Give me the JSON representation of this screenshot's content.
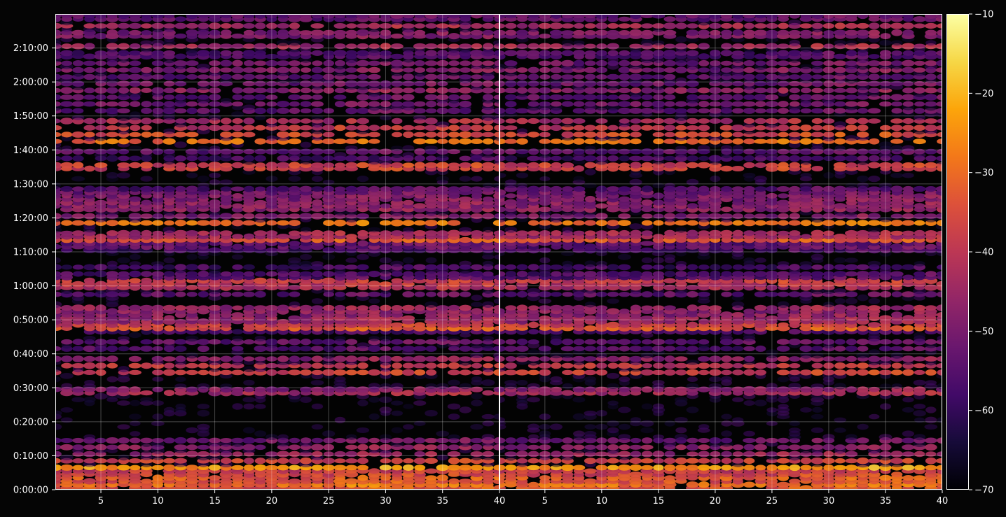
{
  "chart_data": {
    "type": "heatmap",
    "title": "",
    "xlabel": "",
    "ylabel": "",
    "background_color": "#050505",
    "axis_color": "#ffffff",
    "grid": true,
    "colormap": "inferno",
    "panels": [
      {
        "name": "",
        "xlim": [
          1,
          40
        ]
      },
      {
        "name": "",
        "xlim": [
          1,
          40
        ]
      }
    ],
    "x_ticks": [
      5,
      10,
      15,
      20,
      25,
      30,
      35,
      40
    ],
    "y_ticks": [
      "0:00:00",
      "0:10:00",
      "0:20:00",
      "0:30:00",
      "0:40:00",
      "0:50:00",
      "1:00:00",
      "1:10:00",
      "1:20:00",
      "1:30:00",
      "1:40:00",
      "1:50:00",
      "2:00:00",
      "2:10:00"
    ],
    "ylim_minutes": [
      0,
      140
    ],
    "colorbar": {
      "range": [
        -70,
        -10
      ],
      "ticks": [
        -10,
        -20,
        -30,
        -40,
        -50,
        -60,
        -70
      ]
    },
    "active_bands": [
      {
        "t": 0.8,
        "level": -28
      },
      {
        "t": 2.6,
        "level": -30
      },
      {
        "t": 4.4,
        "level": -34
      },
      {
        "t": 6.0,
        "level": -24
      },
      {
        "t": 8.0,
        "level": -38
      },
      {
        "t": 10.0,
        "level": -46
      },
      {
        "t": 12.0,
        "level": -48
      },
      {
        "t": 14.0,
        "level": -52
      },
      {
        "t": 28.2,
        "level": -42
      },
      {
        "t": 34.0,
        "level": -38
      },
      {
        "t": 36.0,
        "level": -40
      },
      {
        "t": 38.0,
        "level": -48
      },
      {
        "t": 41.0,
        "level": -56
      },
      {
        "t": 43.0,
        "level": -54
      },
      {
        "t": 46.0,
        "level": -58
      },
      {
        "t": 47.2,
        "level": -32
      },
      {
        "t": 49.5,
        "level": -42
      },
      {
        "t": 51.5,
        "level": -44
      },
      {
        "t": 53.0,
        "level": -46
      },
      {
        "t": 57.0,
        "level": -54
      },
      {
        "t": 59.0,
        "level": -44
      },
      {
        "t": 60.6,
        "level": -36
      },
      {
        "t": 62.5,
        "level": -52
      },
      {
        "t": 65.0,
        "level": -58
      },
      {
        "t": 70.0,
        "level": -58
      },
      {
        "t": 71.5,
        "level": -50
      },
      {
        "t": 73.0,
        "level": -34
      },
      {
        "t": 74.5,
        "level": -40
      },
      {
        "t": 78.0,
        "level": -30
      },
      {
        "t": 80.0,
        "level": -50
      },
      {
        "t": 82.0,
        "level": -48
      },
      {
        "t": 83.5,
        "level": -44
      },
      {
        "t": 85.5,
        "level": -46
      },
      {
        "t": 87.0,
        "level": -52
      },
      {
        "t": 88.0,
        "level": -56
      },
      {
        "t": 94.5,
        "level": -34
      },
      {
        "t": 97.0,
        "level": -58
      },
      {
        "t": 99.0,
        "level": -54
      },
      {
        "t": 102.0,
        "level": -30
      },
      {
        "t": 104.0,
        "level": -36
      },
      {
        "t": 106.0,
        "level": -40
      },
      {
        "t": 108.0,
        "level": -44
      },
      {
        "t": 111.0,
        "level": -54
      },
      {
        "t": 113.0,
        "level": -52
      },
      {
        "t": 115.0,
        "level": -54
      },
      {
        "t": 117.0,
        "level": -48
      },
      {
        "t": 119.0,
        "level": -52
      },
      {
        "t": 121.0,
        "level": -54
      },
      {
        "t": 123.0,
        "level": -50
      },
      {
        "t": 125.0,
        "level": -52
      },
      {
        "t": 127.5,
        "level": -52
      },
      {
        "t": 130.0,
        "level": -44
      },
      {
        "t": 133.5,
        "level": -46
      },
      {
        "t": 136.0,
        "level": -44
      },
      {
        "t": 138.5,
        "level": -50
      }
    ]
  }
}
